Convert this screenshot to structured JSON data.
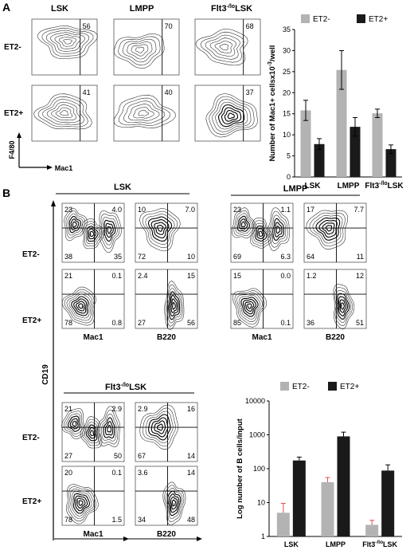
{
  "panel_a": {
    "letter": "A",
    "column_titles": [
      "LSK",
      "LMPP",
      "Flt3"
    ],
    "column_title_sup": "-/lo",
    "column_title_suffix": "LSK",
    "row_labels": [
      "ET2-",
      "ET2+"
    ],
    "y_axis": "F4/80",
    "x_axis": "Mac1",
    "percentages": [
      [
        "56",
        "70",
        "68"
      ],
      [
        "41",
        "40",
        "37"
      ]
    ]
  },
  "panel_b": {
    "letter": "B",
    "groups": [
      {
        "title": "LSK",
        "rows": [
          {
            "label": "ET2-",
            "mac1": [
              "23",
              "4.0",
              "38",
              "35"
            ],
            "b220": [
              "10",
              "7.0",
              "72",
              "10"
            ]
          },
          {
            "label": "ET2+",
            "mac1": [
              "21",
              "0.1",
              "78",
              "0.8"
            ],
            "b220": [
              "2.4",
              "15",
              "27",
              "56"
            ]
          }
        ]
      },
      {
        "title": "LMPP",
        "rows": [
          {
            "label": "",
            "mac1": [
              "23",
              "1.1",
              "69",
              "6.3"
            ],
            "b220": [
              "17",
              "7.7",
              "64",
              "11"
            ]
          },
          {
            "label": "",
            "mac1": [
              "15",
              "0.0",
              "85",
              "0.1"
            ],
            "b220": [
              "1.2",
              "12",
              "36",
              "51"
            ]
          }
        ]
      },
      {
        "title_main": "Flt3",
        "title_sup": "-/lo",
        "title_suffix": "LSK",
        "rows": [
          {
            "label": "ET2-",
            "mac1": [
              "21",
              "2.9",
              "27",
              "50"
            ],
            "b220": [
              "2.9",
              "16",
              "67",
              "14"
            ]
          },
          {
            "label": "ET2+",
            "mac1": [
              "20",
              "0.1",
              "78",
              "1.5"
            ],
            "b220": [
              "3.6",
              "14",
              "34",
              "48"
            ]
          }
        ]
      }
    ],
    "y_axis": "CD19",
    "x_axes": [
      "Mac1",
      "B220"
    ]
  },
  "chart_data": [
    {
      "type": "bar",
      "categories": [
        "LSK",
        "LMPP",
        "Flt3-/loLSK"
      ],
      "category_parts": [
        [
          "LSK",
          "",
          ""
        ],
        [
          "LMPP",
          "",
          ""
        ],
        [
          "Flt3",
          "-/lo",
          "LSK"
        ]
      ],
      "series": [
        {
          "name": "ET2-",
          "values": [
            15.8,
            25.4,
            15.1
          ],
          "errors": [
            2.4,
            4.6,
            1.0
          ],
          "color": "#b3b3b3"
        },
        {
          "name": "ET2+",
          "values": [
            7.8,
            11.9,
            6.6
          ],
          "errors": [
            1.3,
            2.2,
            1.0
          ],
          "color": "#1a1a1a"
        }
      ],
      "ylabel_main": "Number of Mac1+ cellsx10",
      "ylabel_sup": "-3",
      "ylabel_suffix": "/well",
      "ylim": [
        0,
        35
      ],
      "yticks": [
        "0",
        "5",
        "10",
        "15",
        "20",
        "25",
        "30",
        "35"
      ],
      "legend": "top"
    },
    {
      "type": "bar",
      "categories": [
        "LSK",
        "LMPP",
        "Flt3-/loLSK"
      ],
      "category_parts": [
        [
          "LSK",
          "",
          ""
        ],
        [
          "LMPP",
          "",
          ""
        ],
        [
          "Flt3",
          "-/lo",
          "LSK"
        ]
      ],
      "series": [
        {
          "name": "ET2-",
          "values": [
            5,
            40,
            2.2
          ],
          "err_hi": [
            9.5,
            55,
            3.0
          ],
          "color": "#b3b3b3"
        },
        {
          "name": "ET2+",
          "values": [
            175,
            900,
            88
          ],
          "err_hi": [
            220,
            1200,
            130
          ],
          "color": "#1a1a1a"
        }
      ],
      "ylabel": "Log number of B cells/input",
      "yscale": "log",
      "ylim": [
        1,
        10000
      ],
      "yticks": [
        "1",
        "10",
        "100",
        "1000",
        "10000"
      ],
      "legend": "top"
    }
  ]
}
